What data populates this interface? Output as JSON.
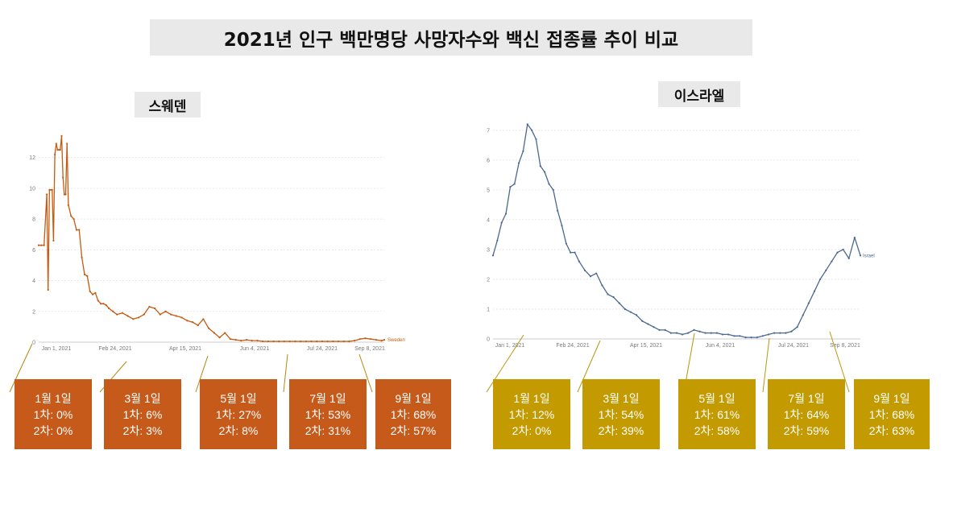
{
  "title": "2021년 인구 백만명당 사망자수와 백신 접종률 추이 비교",
  "colors": {
    "sweden": "#c55a11",
    "israel": "#4a6890",
    "sweden_box": "#c55a1a",
    "israel_box": "#c39a00",
    "title_bg": "#e9e9e9"
  },
  "chart_data": [
    {
      "type": "line",
      "title": "스웨덴",
      "series_label": "Sweden",
      "x_tick_labels": [
        "Jan 1, 2021",
        "Feb 24, 2021",
        "Apr 15, 2021",
        "Jun 4, 2021",
        "Jul 24, 2021",
        "Sep 8, 2021"
      ],
      "y_tick_labels": [
        "0",
        "2",
        "4",
        "6",
        "8",
        "10",
        "12"
      ],
      "ylim": [
        0,
        13.5
      ],
      "x_range_days": [
        0,
        256
      ],
      "grid": true,
      "series": [
        {
          "name": "Sweden",
          "x": [
            0,
            2,
            4,
            6,
            7,
            8,
            9,
            10,
            11,
            12,
            13,
            14,
            15,
            16,
            17,
            18,
            19,
            20,
            21,
            22,
            24,
            26,
            28,
            30,
            32,
            34,
            36,
            38,
            40,
            42,
            44,
            46,
            48,
            50,
            52,
            55,
            58,
            62,
            66,
            70,
            74,
            78,
            82,
            86,
            90,
            94,
            98,
            102,
            106,
            110,
            114,
            118,
            122,
            126,
            130,
            134,
            138,
            142,
            146,
            150,
            154,
            158,
            162,
            166,
            170,
            174,
            178,
            182,
            186,
            190,
            194,
            198,
            202,
            206,
            210,
            214,
            218,
            222,
            226,
            230,
            234,
            238,
            242,
            246,
            250,
            254,
            256
          ],
          "values": [
            6.3,
            6.3,
            6.3,
            9.6,
            3.4,
            9.9,
            9.9,
            9.9,
            6.6,
            12.2,
            12.9,
            12.5,
            12.5,
            12.5,
            13.4,
            10.7,
            9.6,
            9.6,
            12.9,
            8.9,
            8.2,
            8.0,
            7.3,
            7.3,
            5.5,
            4.4,
            4.3,
            3.3,
            3.1,
            3.2,
            2.7,
            2.5,
            2.5,
            2.4,
            2.2,
            2.0,
            1.8,
            1.9,
            1.7,
            1.5,
            1.6,
            1.8,
            2.3,
            2.2,
            1.8,
            2.0,
            1.8,
            1.7,
            1.6,
            1.4,
            1.3,
            1.1,
            1.5,
            0.9,
            0.6,
            0.3,
            0.6,
            0.2,
            0.15,
            0.1,
            0.15,
            0.1,
            0.1,
            0.05,
            0.05,
            0.05,
            0.05,
            0.05,
            0.05,
            0.05,
            0.05,
            0.05,
            0.05,
            0.05,
            0.05,
            0.05,
            0.05,
            0.05,
            0.05,
            0.05,
            0.1,
            0.2,
            0.25,
            0.2,
            0.15,
            0.1,
            0.15
          ]
        }
      ],
      "milestones": [
        {
          "date": "1월 1일",
          "dose1": "1차: 0%",
          "dose2": "2차: 0%"
        },
        {
          "date": "3월 1일",
          "dose1": "1차: 6%",
          "dose2": "2차: 3%"
        },
        {
          "date": "5월 1일",
          "dose1": "1차: 27%",
          "dose2": "2차: 8%"
        },
        {
          "date": "7월 1일",
          "dose1": "1차: 53%",
          "dose2": "2차: 31%"
        },
        {
          "date": "9월 1일",
          "dose1": "1차: 68%",
          "dose2": "2차: 57%"
        }
      ]
    },
    {
      "type": "line",
      "title": "이스라엘",
      "series_label": "Israel",
      "x_tick_labels": [
        "Jan 1, 2021",
        "Feb 24, 2021",
        "Apr 15, 2021",
        "Jun 4, 2021",
        "Jul 24, 2021",
        "Sep 8, 2021"
      ],
      "y_tick_labels": [
        "0",
        "1",
        "2",
        "3",
        "4",
        "5",
        "6",
        "7"
      ],
      "ylim": [
        0,
        7.4
      ],
      "x_range_days": [
        0,
        256
      ],
      "grid": true,
      "series": [
        {
          "name": "Israel",
          "x": [
            0,
            3,
            6,
            9,
            12,
            15,
            18,
            21,
            24,
            27,
            30,
            33,
            36,
            39,
            42,
            45,
            48,
            51,
            54,
            57,
            60,
            64,
            68,
            72,
            76,
            80,
            84,
            88,
            92,
            96,
            100,
            104,
            108,
            112,
            116,
            120,
            124,
            128,
            132,
            136,
            140,
            144,
            148,
            152,
            156,
            160,
            164,
            168,
            172,
            176,
            180,
            184,
            188,
            192,
            196,
            200,
            204,
            208,
            212,
            216,
            220,
            224,
            228,
            232,
            236,
            240,
            244,
            248,
            252,
            256
          ],
          "values": [
            2.8,
            3.3,
            3.9,
            4.2,
            5.1,
            5.2,
            5.9,
            6.3,
            7.2,
            7.0,
            6.7,
            5.8,
            5.6,
            5.2,
            5.0,
            4.3,
            3.8,
            3.2,
            2.9,
            2.9,
            2.6,
            2.3,
            2.1,
            2.2,
            1.8,
            1.5,
            1.4,
            1.2,
            1.0,
            0.9,
            0.8,
            0.6,
            0.5,
            0.4,
            0.3,
            0.3,
            0.2,
            0.2,
            0.15,
            0.2,
            0.3,
            0.25,
            0.2,
            0.2,
            0.2,
            0.15,
            0.15,
            0.1,
            0.1,
            0.05,
            0.05,
            0.05,
            0.1,
            0.15,
            0.2,
            0.2,
            0.2,
            0.25,
            0.4,
            0.8,
            1.2,
            1.6,
            2.0,
            2.3,
            2.6,
            2.9,
            3.0,
            2.7,
            3.4,
            2.8
          ]
        }
      ],
      "milestones": [
        {
          "date": "1월 1일",
          "dose1": "1차: 12%",
          "dose2": "2차: 0%"
        },
        {
          "date": "3월 1일",
          "dose1": "1차: 54%",
          "dose2": "2차: 39%"
        },
        {
          "date": "5월 1일",
          "dose1": "1차: 61%",
          "dose2": "2차: 58%"
        },
        {
          "date": "7월 1일",
          "dose1": "1차: 64%",
          "dose2": "2차: 59%"
        },
        {
          "date": "9월 1일",
          "dose1": "1차: 68%",
          "dose2": "2차: 63%"
        }
      ]
    }
  ]
}
